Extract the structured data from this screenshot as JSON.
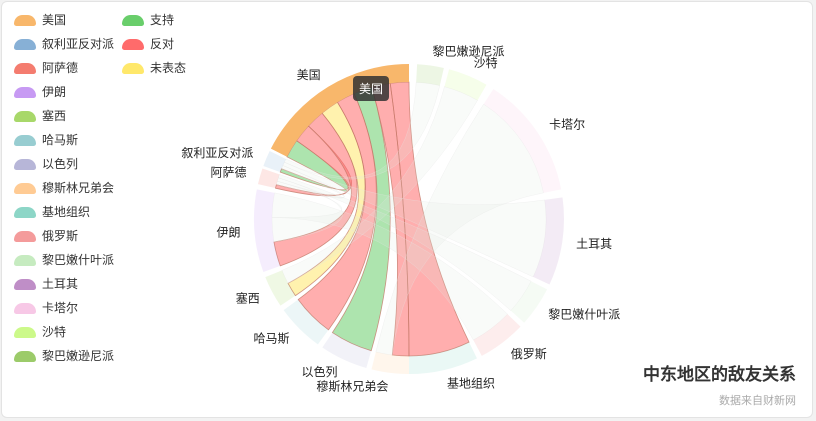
{
  "chart_data": {
    "type": "chord",
    "title": "中东地区的敌友关系",
    "subtitle": "数据来自财新网",
    "nodes": [
      {
        "name": "美国",
        "color": "#f8b76b"
      },
      {
        "name": "叙利亚反对派",
        "color": "#87b0d6"
      },
      {
        "name": "阿萨德",
        "color": "#f47c6f"
      },
      {
        "name": "伊朗",
        "color": "#c79af3"
      },
      {
        "name": "塞西",
        "color": "#a8d86a"
      },
      {
        "name": "哈马斯",
        "color": "#98cdd1"
      },
      {
        "name": "以色列",
        "color": "#b7b6d8"
      },
      {
        "name": "穆斯林兄弟会",
        "color": "#ffcb94"
      },
      {
        "name": "基地组织",
        "color": "#8dd6c7"
      },
      {
        "name": "俄罗斯",
        "color": "#f49b9b"
      },
      {
        "name": "黎巴嫩什叶派",
        "color": "#c6ebc0"
      },
      {
        "name": "土耳其",
        "color": "#bf8ec7"
      },
      {
        "name": "卡塔尔",
        "color": "#f7c8e6"
      },
      {
        "name": "沙特",
        "color": "#ccf98a"
      },
      {
        "name": "黎巴嫩逊尼派",
        "color": "#9ccb6a"
      }
    ],
    "relation_types": [
      {
        "name": "支持",
        "color": "#69ce6b"
      },
      {
        "name": "反对",
        "color": "#ff6b6b"
      },
      {
        "name": "未表态",
        "color": "#ffe86b"
      }
    ],
    "links": [
      {
        "source": "美国",
        "target": "叙利亚反对派",
        "relation": "支持"
      },
      {
        "source": "美国",
        "target": "阿萨德",
        "relation": "反对"
      },
      {
        "source": "美国",
        "target": "伊朗",
        "relation": "反对"
      },
      {
        "source": "美国",
        "target": "塞西",
        "relation": "未表态"
      },
      {
        "source": "美国",
        "target": "哈马斯",
        "relation": "反对"
      },
      {
        "source": "美国",
        "target": "以色列",
        "relation": "支持"
      },
      {
        "source": "美国",
        "target": "穆斯林兄弟会",
        "relation": "反对"
      },
      {
        "source": "美国",
        "target": "基地组织",
        "relation": "反对"
      },
      {
        "source": "叙利亚反对派",
        "target": "阿萨德",
        "relation": "反对"
      },
      {
        "source": "阿萨德",
        "target": "伊朗",
        "relation": "支持"
      },
      {
        "source": "伊朗",
        "target": "俄罗斯",
        "relation": "支持"
      },
      {
        "source": "沙特",
        "target": "塞西",
        "relation": "支持"
      },
      {
        "source": "卡塔尔",
        "target": "穆斯林兄弟会",
        "relation": "支持"
      },
      {
        "source": "土耳其",
        "target": "叙利亚反对派",
        "relation": "支持"
      },
      {
        "source": "黎巴嫩什叶派",
        "target": "阿萨德",
        "relation": "支持"
      },
      {
        "source": "黎巴嫩逊尼派",
        "target": "叙利亚反对派",
        "relation": "支持"
      }
    ],
    "highlighted": "美国",
    "tooltip": "美国",
    "legend_position": "left"
  }
}
